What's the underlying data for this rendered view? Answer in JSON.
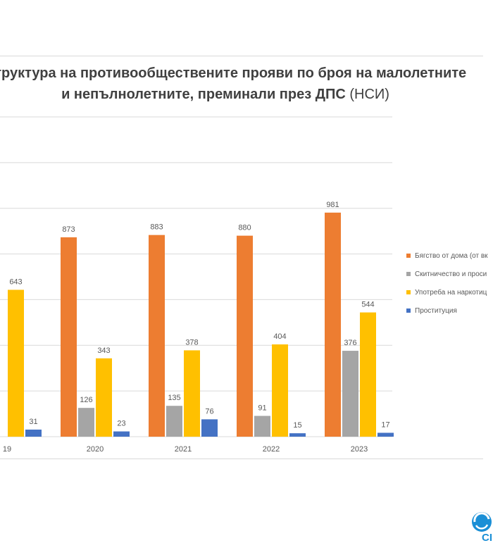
{
  "chart_data": {
    "type": "bar",
    "title_line1": "Структура на противообществените прояви по броя на малолетните",
    "title_line2": "и непълнолетните, преминали през ДПС",
    "title_source": "(НСИ)",
    "categories": [
      "19",
      "2020",
      "2021",
      "2022",
      "2023"
    ],
    "series": [
      {
        "name": "Бягство от дома (от вк",
        "color": "#ED7D31",
        "values": [
          null,
          873,
          883,
          880,
          981
        ]
      },
      {
        "name": "Скитничество и проси",
        "color": "#A5A5A5",
        "values": [
          null,
          126,
          135,
          91,
          376
        ]
      },
      {
        "name": "Употреба на наркотиц",
        "color": "#FFC000",
        "values": [
          643,
          343,
          378,
          404,
          544
        ]
      },
      {
        "name": "Проституция",
        "color": "#4472C4",
        "values": [
          31,
          23,
          76,
          15,
          17
        ]
      }
    ],
    "ylim": [
      0,
      1200
    ],
    "grid": true,
    "legend": "right"
  },
  "brand": {
    "logo_text": "CI",
    "logo_icon": "swirl-logo-icon",
    "logo_color": "#1a8fd6"
  }
}
